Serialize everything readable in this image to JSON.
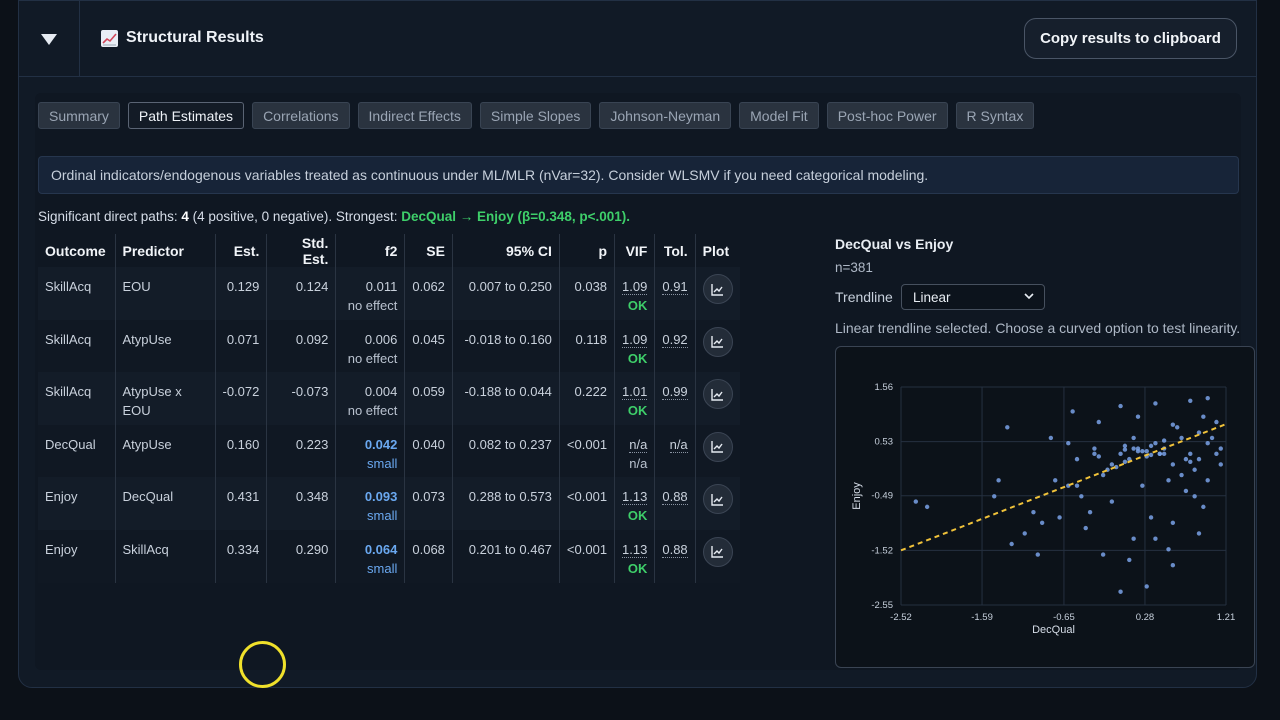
{
  "header": {
    "title": "Structural Results",
    "copy_label": "Copy results to clipboard"
  },
  "tabs": [
    {
      "label": "Summary"
    },
    {
      "label": "Path Estimates",
      "active": true
    },
    {
      "label": "Correlations"
    },
    {
      "label": "Indirect Effects"
    },
    {
      "label": "Simple Slopes"
    },
    {
      "label": "Johnson-Neyman"
    },
    {
      "label": "Model Fit"
    },
    {
      "label": "Post-hoc Power"
    },
    {
      "label": "R Syntax"
    }
  ],
  "notice": "Ordinal indicators/endogenous variables treated as continuous under ML/MLR (nVar=32). Consider WLSMV if you need categorical modeling.",
  "summary": {
    "prefix": "Significant direct paths: ",
    "count": "4",
    "detail": " (4 positive, 0 negative). Strongest: ",
    "strongest": "DecQual → Enjoy (β=0.348, p<.001)."
  },
  "table": {
    "headers": [
      "Outcome",
      "Predictor",
      "Est.",
      "Std. Est.",
      "f2",
      "SE",
      "95% CI",
      "p",
      "VIF",
      "Tol.",
      "Plot"
    ],
    "rows": [
      {
        "outcome": "SkillAcq",
        "predictor": "EOU",
        "est": "0.129",
        "std": "0.124",
        "f2": "0.011",
        "f2_label": "no effect",
        "f2_hi": false,
        "se": "0.062",
        "ci": "0.007 to 0.250",
        "p": "0.038",
        "vif": "1.09",
        "vif_status": "OK",
        "tol": "0.91"
      },
      {
        "outcome": "SkillAcq",
        "predictor": "AtypUse",
        "est": "0.071",
        "std": "0.092",
        "f2": "0.006",
        "f2_label": "no effect",
        "f2_hi": false,
        "se": "0.045",
        "ci": "-0.018 to 0.160",
        "p": "0.118",
        "vif": "1.09",
        "vif_status": "OK",
        "tol": "0.92"
      },
      {
        "outcome": "SkillAcq",
        "predictor": "AtypUse x EOU",
        "est": "-0.072",
        "std": "-0.073",
        "f2": "0.004",
        "f2_label": "no effect",
        "f2_hi": false,
        "se": "0.059",
        "ci": "-0.188 to 0.044",
        "p": "0.222",
        "vif": "1.01",
        "vif_status": "OK",
        "tol": "0.99"
      },
      {
        "outcome": "DecQual",
        "predictor": "AtypUse",
        "est": "0.160",
        "std": "0.223",
        "f2": "0.042",
        "f2_label": "small",
        "f2_hi": true,
        "se": "0.040",
        "ci": "0.082 to 0.237",
        "p": "<0.001",
        "vif": "n/a",
        "vif_status": "n/a",
        "tol": "n/a"
      },
      {
        "outcome": "Enjoy",
        "predictor": "DecQual",
        "est": "0.431",
        "std": "0.348",
        "f2": "0.093",
        "f2_label": "small",
        "f2_hi": true,
        "se": "0.073",
        "ci": "0.288 to 0.573",
        "p": "<0.001",
        "vif": "1.13",
        "vif_status": "OK",
        "tol": "0.88"
      },
      {
        "outcome": "Enjoy",
        "predictor": "SkillAcq",
        "est": "0.334",
        "std": "0.290",
        "f2": "0.064",
        "f2_label": "small",
        "f2_hi": true,
        "se": "0.068",
        "ci": "0.201 to 0.467",
        "p": "<0.001",
        "vif": "1.13",
        "vif_status": "OK",
        "tol": "0.88"
      }
    ]
  },
  "scatter": {
    "title": "DecQual vs Enjoy",
    "n_label": "n=381",
    "trendline_label": "Trendline",
    "trendline_value": "Linear",
    "note": "Linear trendline selected. Choose a curved option to test linearity."
  },
  "chart_data": {
    "type": "scatter",
    "xlabel": "DecQual",
    "ylabel": "Enjoy",
    "xlim": [
      -2.52,
      1.21
    ],
    "ylim": [
      -2.55,
      1.56
    ],
    "xticks": [
      "-2.52",
      "-1.59",
      "-0.65",
      "0.28",
      "1.21"
    ],
    "yticks": [
      "1.56",
      "0.53",
      "-0.49",
      "-1.52",
      "-2.55"
    ],
    "trendline": {
      "type": "linear",
      "x": [
        -2.52,
        1.21
      ],
      "y": [
        -1.52,
        0.86
      ]
    },
    "points_x": [
      -2.35,
      -2.22,
      -1.45,
      -1.1,
      -1.25,
      -1.0,
      -0.9,
      -0.75,
      -0.6,
      -0.5,
      -0.3,
      -0.2,
      -0.1,
      0.0,
      0.1,
      0.2,
      0.3,
      0.4,
      0.5,
      0.6,
      0.7,
      0.8,
      0.9,
      1.0,
      1.1,
      -0.45,
      -0.35,
      -0.15,
      0.05,
      0.15,
      0.25,
      0.35,
      0.45,
      0.55,
      0.65,
      0.75,
      0.85,
      0.95,
      1.05,
      1.15,
      -0.55,
      -0.25,
      0.0,
      0.2,
      0.4,
      0.6,
      0.8,
      1.0,
      -0.7,
      -0.4,
      -0.1,
      0.15,
      0.35,
      0.55,
      0.75,
      0.95,
      1.15,
      -0.6,
      -0.3,
      0.05,
      0.3,
      0.5,
      0.7,
      0.9,
      1.1,
      -0.2,
      0.1,
      0.4,
      0.6,
      0.85,
      -0.05,
      -0.25,
      0.2,
      0.5,
      0.8,
      1.0,
      -0.8,
      -0.5,
      0.0,
      0.3,
      0.6,
      0.9,
      -1.3,
      -1.4,
      -0.95,
      0.25,
      0.45,
      0.15,
      0.35,
      0.05
    ],
    "points_y": [
      -0.6,
      -0.7,
      -0.5,
      -1.2,
      -1.4,
      -0.8,
      -1.0,
      -0.2,
      -0.3,
      0.2,
      0.4,
      -0.1,
      0.1,
      0.3,
      0.2,
      0.35,
      0.25,
      0.5,
      0.4,
      0.1,
      0.6,
      0.3,
      0.7,
      0.5,
      0.9,
      -0.5,
      -0.8,
      0.0,
      0.15,
      0.6,
      -0.3,
      0.45,
      0.3,
      -0.2,
      0.8,
      0.2,
      0.0,
      1.0,
      0.6,
      0.4,
      1.1,
      0.9,
      1.2,
      1.0,
      1.25,
      0.85,
      1.3,
      1.35,
      -0.9,
      -1.1,
      -0.6,
      -1.3,
      -0.9,
      -1.5,
      -0.4,
      -0.7,
      0.1,
      0.5,
      0.3,
      0.45,
      0.35,
      0.55,
      -0.1,
      0.2,
      0.3,
      -1.6,
      -1.7,
      -1.3,
      -1.0,
      -0.5,
      0.05,
      0.25,
      0.4,
      0.3,
      0.15,
      -0.2,
      0.6,
      -0.3,
      -2.3,
      -2.2,
      -1.8,
      -1.2,
      0.8,
      -0.2,
      -1.6,
      0.35,
      0.3,
      0.4,
      0.28,
      0.38
    ]
  }
}
